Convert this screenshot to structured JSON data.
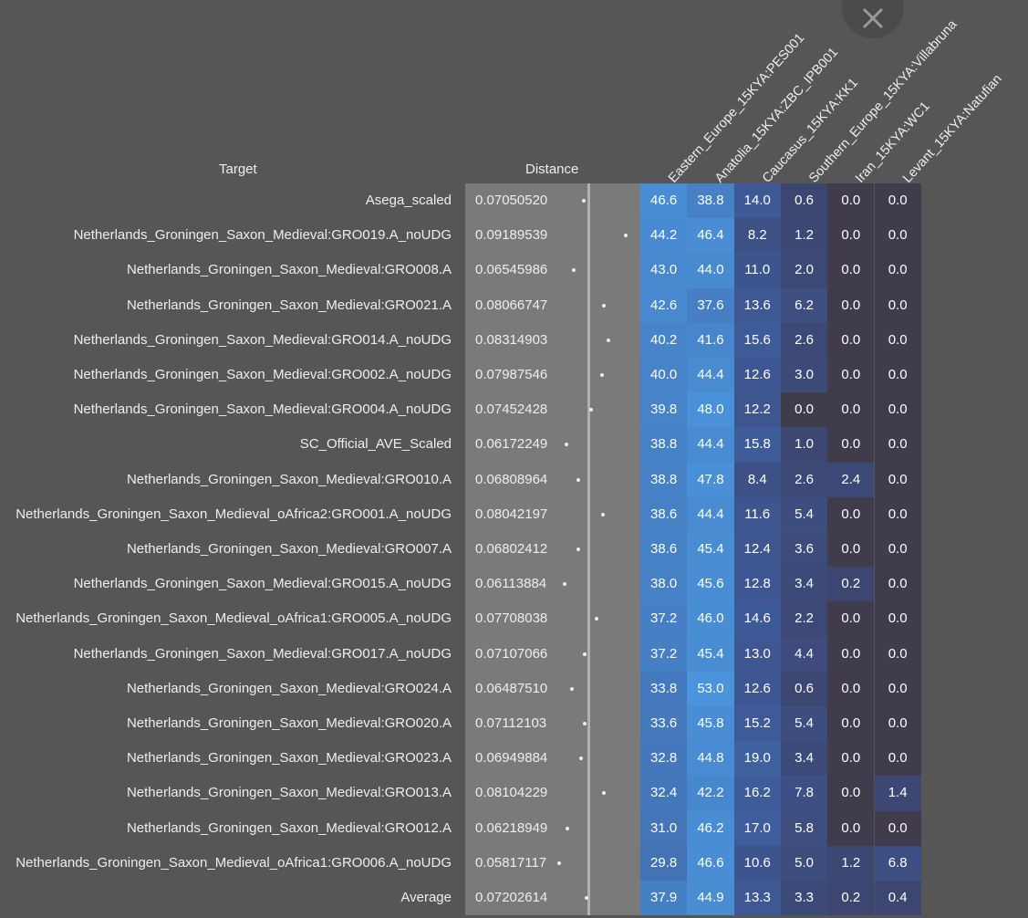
{
  "chart_data": {
    "type": "heatmap",
    "headers": {
      "target": "Target",
      "distance": "Distance"
    },
    "columns": [
      "Eastern_Europe_15KYA:PES001",
      "Anatolia_15KYA:ZBC_IPB001",
      "Caucasus_15KYA:KK1",
      "Southern_Europe_15KYA:Villabruna",
      "Iran_15KYA:WC1",
      "Levant_15KYA:Natufian"
    ],
    "distance_range": [
      0.0582,
      0.0919
    ],
    "rows": [
      {
        "target": "Asega_scaled",
        "distance": "0.07050520",
        "values": [
          "46.6",
          "38.8",
          "14.0",
          "0.6",
          "0.0",
          "0.0"
        ]
      },
      {
        "target": "Netherlands_Groningen_Saxon_Medieval:GRO019.A_noUDG",
        "distance": "0.09189539",
        "values": [
          "44.2",
          "46.4",
          "8.2",
          "1.2",
          "0.0",
          "0.0"
        ]
      },
      {
        "target": "Netherlands_Groningen_Saxon_Medieval:GRO008.A",
        "distance": "0.06545986",
        "values": [
          "43.0",
          "44.0",
          "11.0",
          "2.0",
          "0.0",
          "0.0"
        ]
      },
      {
        "target": "Netherlands_Groningen_Saxon_Medieval:GRO021.A",
        "distance": "0.08066747",
        "values": [
          "42.6",
          "37.6",
          "13.6",
          "6.2",
          "0.0",
          "0.0"
        ]
      },
      {
        "target": "Netherlands_Groningen_Saxon_Medieval:GRO014.A_noUDG",
        "distance": "0.08314903",
        "values": [
          "40.2",
          "41.6",
          "15.6",
          "2.6",
          "0.0",
          "0.0"
        ]
      },
      {
        "target": "Netherlands_Groningen_Saxon_Medieval:GRO002.A_noUDG",
        "distance": "0.07987546",
        "values": [
          "40.0",
          "44.4",
          "12.6",
          "3.0",
          "0.0",
          "0.0"
        ]
      },
      {
        "target": "Netherlands_Groningen_Saxon_Medieval:GRO004.A_noUDG",
        "distance": "0.07452428",
        "values": [
          "39.8",
          "48.0",
          "12.2",
          "0.0",
          "0.0",
          "0.0"
        ]
      },
      {
        "target": "SC_Official_AVE_Scaled",
        "distance": "0.06172249",
        "values": [
          "38.8",
          "44.4",
          "15.8",
          "1.0",
          "0.0",
          "0.0"
        ]
      },
      {
        "target": "Netherlands_Groningen_Saxon_Medieval:GRO010.A",
        "distance": "0.06808964",
        "values": [
          "38.8",
          "47.8",
          "8.4",
          "2.6",
          "2.4",
          "0.0"
        ]
      },
      {
        "target": "Netherlands_Groningen_Saxon_Medieval_oAfrica2:GRO001.A_noUDG",
        "distance": "0.08042197",
        "values": [
          "38.6",
          "44.4",
          "11.6",
          "5.4",
          "0.0",
          "0.0"
        ]
      },
      {
        "target": "Netherlands_Groningen_Saxon_Medieval:GRO007.A",
        "distance": "0.06802412",
        "values": [
          "38.6",
          "45.4",
          "12.4",
          "3.6",
          "0.0",
          "0.0"
        ]
      },
      {
        "target": "Netherlands_Groningen_Saxon_Medieval:GRO015.A_noUDG",
        "distance": "0.06113884",
        "values": [
          "38.0",
          "45.6",
          "12.8",
          "3.4",
          "0.2",
          "0.0"
        ]
      },
      {
        "target": "Netherlands_Groningen_Saxon_Medieval_oAfrica1:GRO005.A_noUDG",
        "distance": "0.07708038",
        "values": [
          "37.2",
          "46.0",
          "14.6",
          "2.2",
          "0.0",
          "0.0"
        ]
      },
      {
        "target": "Netherlands_Groningen_Saxon_Medieval:GRO017.A_noUDG",
        "distance": "0.07107066",
        "values": [
          "37.2",
          "45.4",
          "13.0",
          "4.4",
          "0.0",
          "0.0"
        ]
      },
      {
        "target": "Netherlands_Groningen_Saxon_Medieval:GRO024.A",
        "distance": "0.06487510",
        "values": [
          "33.8",
          "53.0",
          "12.6",
          "0.6",
          "0.0",
          "0.0"
        ]
      },
      {
        "target": "Netherlands_Groningen_Saxon_Medieval:GRO020.A",
        "distance": "0.07112103",
        "values": [
          "33.6",
          "45.8",
          "15.2",
          "5.4",
          "0.0",
          "0.0"
        ]
      },
      {
        "target": "Netherlands_Groningen_Saxon_Medieval:GRO023.A",
        "distance": "0.06949884",
        "values": [
          "32.8",
          "44.8",
          "19.0",
          "3.4",
          "0.0",
          "0.0"
        ]
      },
      {
        "target": "Netherlands_Groningen_Saxon_Medieval:GRO013.A",
        "distance": "0.08104229",
        "values": [
          "32.4",
          "42.2",
          "16.2",
          "7.8",
          "0.0",
          "1.4"
        ]
      },
      {
        "target": "Netherlands_Groningen_Saxon_Medieval:GRO012.A",
        "distance": "0.06218949",
        "values": [
          "31.0",
          "46.2",
          "17.0",
          "5.8",
          "0.0",
          "0.0"
        ]
      },
      {
        "target": "Netherlands_Groningen_Saxon_Medieval_oAfrica1:GRO006.A_noUDG",
        "distance": "0.05817117",
        "values": [
          "29.8",
          "46.6",
          "10.6",
          "5.0",
          "1.2",
          "6.8"
        ]
      },
      {
        "target": "Average",
        "distance": "0.07202614",
        "values": [
          "37.9",
          "44.9",
          "13.3",
          "3.3",
          "0.2",
          "0.4"
        ]
      }
    ],
    "average_distance": 0.07202614,
    "color_scale": {
      "zero": "#403c4c",
      "low": "#3c4670",
      "mid": "#3e5a98",
      "high": "#4a94dc"
    }
  }
}
